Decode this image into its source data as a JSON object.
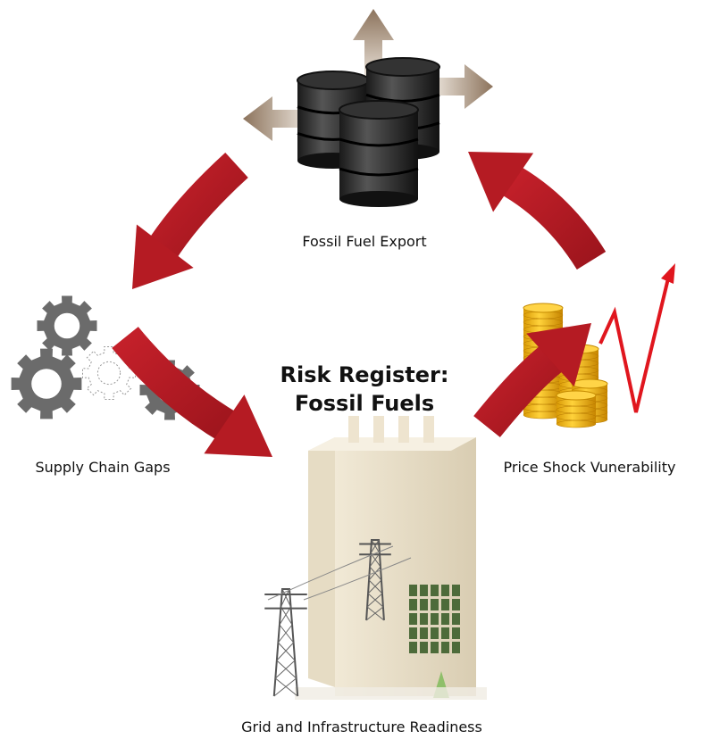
{
  "title_lines": [
    "Risk Register:",
    "Fossil Fuels"
  ],
  "nodes": [
    {
      "label": "Fossil Fuel Export"
    },
    {
      "label": "Supply Chain Gaps"
    },
    {
      "label": "Price Shock Vunerability"
    },
    {
      "label": "Grid and Infrastructure Readiness"
    }
  ]
}
